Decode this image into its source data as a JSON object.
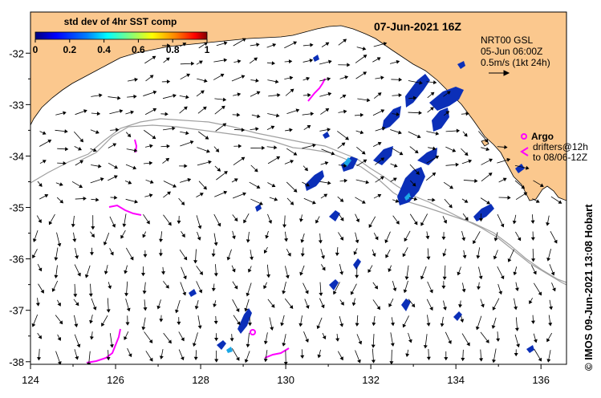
{
  "title": "07-Jun-2021 16Z",
  "colorbar": {
    "label": "std dev of 4hr SST comp",
    "ticks": [
      "0",
      "0.2",
      "0.4",
      "0.6",
      "0.8",
      "1"
    ],
    "colors": [
      "#00007f",
      "#0000ff",
      "#007fff",
      "#00ffff",
      "#7fff7f",
      "#ffff00",
      "#ff7f00",
      "#ff0000",
      "#7f0000"
    ]
  },
  "current_legend": {
    "lines": [
      "NRT00 GSL",
      "05-Jun 06:00Z",
      "0.5m/s (1kt 24h)"
    ]
  },
  "argo_legend": {
    "title": "Argo",
    "lines": [
      "drifters@12h",
      "to 08/06-12Z"
    ]
  },
  "side_label": "© IMOS 09-Jun-2021 13:08 Hobart",
  "axes": {
    "x_ticks": [
      "124",
      "126",
      "128",
      "130",
      "132",
      "134",
      "136"
    ],
    "y_ticks": [
      "-32",
      "-33",
      "-34",
      "-35",
      "-36",
      "-37",
      "-38"
    ],
    "x_range": [
      124,
      136.6
    ],
    "y_range": [
      -38.05,
      -31.2
    ]
  },
  "colors": {
    "land": "#fbc88e",
    "current_arrow": "#000000",
    "argo": "#ff00ff",
    "bathymetry": "#a0a0a0",
    "sst_patch": "#0b2fb8"
  }
}
